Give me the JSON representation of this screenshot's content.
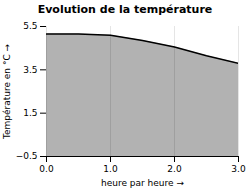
{
  "chart_data": {
    "type": "area",
    "title": "Evolution de la température",
    "xlabel": "heure par heure",
    "ylabel": "Température en °C",
    "x": [
      0,
      0.5,
      1.0,
      1.5,
      2.0,
      2.5,
      3.0
    ],
    "values": [
      5.15,
      5.15,
      5.1,
      4.85,
      4.55,
      4.15,
      3.8
    ],
    "xlim": [
      0,
      3
    ],
    "ylim": [
      -0.5,
      5.5
    ],
    "xticks": [
      0,
      1,
      2,
      3
    ],
    "yticks": [
      -0.5,
      1.5,
      3.5,
      5.5
    ],
    "grid": "x"
  }
}
